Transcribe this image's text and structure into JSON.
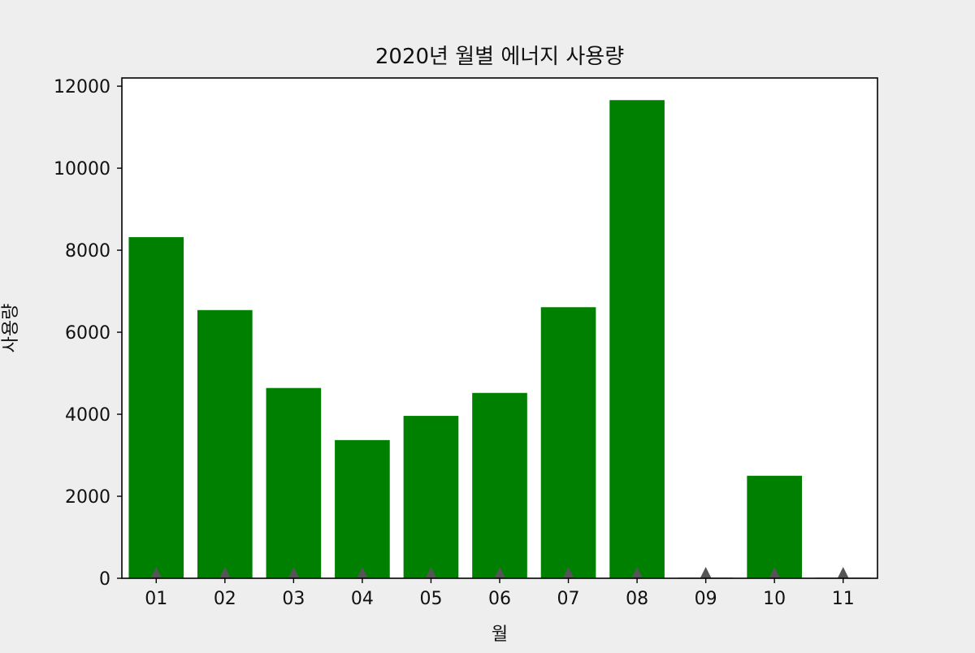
{
  "chart_data": {
    "type": "bar",
    "title": "2020년 월별 에너지 사용량",
    "xlabel": "월",
    "ylabel": "사용량",
    "categories": [
      "01",
      "02",
      "03",
      "04",
      "05",
      "06",
      "07",
      "08",
      "09",
      "10",
      "11"
    ],
    "values": [
      8320,
      6540,
      4640,
      3370,
      3960,
      4520,
      6610,
      11660,
      15,
      2500,
      15
    ],
    "ylim": [
      0,
      12200
    ],
    "yticks": [
      0,
      2000,
      4000,
      6000,
      8000,
      10000,
      12000
    ],
    "grid": false,
    "legend": "none",
    "bar_color": "#008000",
    "marker_color": "#555555",
    "background_color": "#eeeeee",
    "plot_background_color": "#ffffff"
  }
}
